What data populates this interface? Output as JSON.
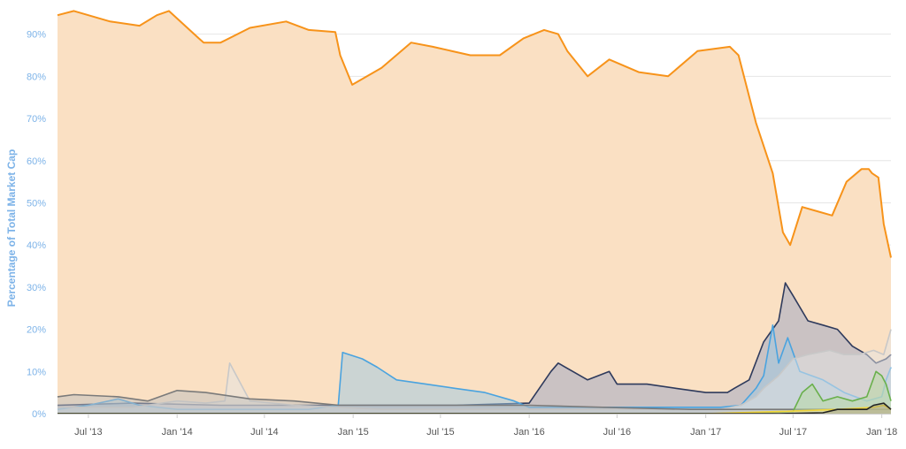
{
  "chart_data": {
    "type": "area",
    "title": "",
    "xlabel": "",
    "ylabel": "Percentage of Total Market Cap",
    "y_unit": "%",
    "ylim": [
      0,
      96
    ],
    "xlim": [
      "2013-04-28",
      "2018-01-20"
    ],
    "grid": true,
    "y_ticks": [
      {
        "value": 0,
        "label": "0%"
      },
      {
        "value": 10,
        "label": "10%"
      },
      {
        "value": 20,
        "label": "20%"
      },
      {
        "value": 30,
        "label": "30%"
      },
      {
        "value": 40,
        "label": "40%"
      },
      {
        "value": 50,
        "label": "50%"
      },
      {
        "value": 60,
        "label": "60%"
      },
      {
        "value": 70,
        "label": "70%"
      },
      {
        "value": 80,
        "label": "80%"
      },
      {
        "value": 90,
        "label": "90%"
      }
    ],
    "x_ticks": [
      {
        "date": "2013-07-01",
        "label": "Jul '13"
      },
      {
        "date": "2014-01-01",
        "label": "Jan '14"
      },
      {
        "date": "2014-07-01",
        "label": "Jul '14"
      },
      {
        "date": "2015-01-01",
        "label": "Jan '15"
      },
      {
        "date": "2015-07-01",
        "label": "Jul '15"
      },
      {
        "date": "2016-01-01",
        "label": "Jan '16"
      },
      {
        "date": "2016-07-01",
        "label": "Jul '16"
      },
      {
        "date": "2017-01-01",
        "label": "Jan '17"
      },
      {
        "date": "2017-07-01",
        "label": "Jul '17"
      },
      {
        "date": "2018-01-01",
        "label": "Jan '18"
      }
    ],
    "series": [
      {
        "color": "#f7931a",
        "fill": "#fae0c3",
        "fill_opacity": 1,
        "x": [
          "2013-04-28",
          "2013-06-01",
          "2013-08-15",
          "2013-10-15",
          "2013-11-20",
          "2013-12-15",
          "2014-02-15",
          "2014-02-25",
          "2014-04-01",
          "2014-06-01",
          "2014-08-15",
          "2014-10-01",
          "2014-11-25",
          "2014-12-05",
          "2014-12-30",
          "2015-03-01",
          "2015-05-01",
          "2015-06-15",
          "2015-09-01",
          "2015-11-01",
          "2015-12-20",
          "2016-02-01",
          "2016-03-01",
          "2016-03-20",
          "2016-05-01",
          "2016-06-15",
          "2016-08-15",
          "2016-10-15",
          "2016-12-15",
          "2017-02-20",
          "2017-03-01",
          "2017-03-10",
          "2017-04-15",
          "2017-05-20",
          "2017-06-10",
          "2017-06-25",
          "2017-07-20",
          "2017-08-20",
          "2017-09-20",
          "2017-10-20",
          "2017-11-20",
          "2017-12-05",
          "2017-12-12",
          "2017-12-25",
          "2018-01-05",
          "2018-01-20"
        ],
        "y": [
          94.5,
          95.5,
          93,
          92,
          94.5,
          95.5,
          89,
          88,
          88,
          91.5,
          93,
          91,
          90.5,
          85,
          78,
          82,
          88,
          87,
          85,
          85,
          89,
          91,
          90,
          86,
          80,
          84,
          81,
          80,
          86,
          87,
          86,
          85,
          69,
          57,
          43,
          40,
          49,
          48,
          47,
          55,
          58,
          58,
          57,
          56,
          45,
          37
        ]
      },
      {
        "color": "#2e3a5c",
        "fill": "#9aa4c4",
        "fill_opacity": 0.5,
        "x": [
          "2013-04-28",
          "2013-10-01",
          "2014-04-01",
          "2014-10-01",
          "2015-03-01",
          "2015-08-01",
          "2016-01-01",
          "2016-02-15",
          "2016-03-01",
          "2016-05-01",
          "2016-06-15",
          "2016-07-01",
          "2016-09-01",
          "2016-11-01",
          "2017-01-01",
          "2017-02-15",
          "2017-03-01",
          "2017-04-01",
          "2017-05-01",
          "2017-06-01",
          "2017-06-15",
          "2017-07-01",
          "2017-08-01",
          "2017-09-01",
          "2017-10-01",
          "2017-11-01",
          "2017-12-01",
          "2017-12-20",
          "2018-01-10",
          "2018-01-20"
        ],
        "y": [
          2,
          2.5,
          2,
          2,
          2,
          2,
          2.5,
          10,
          12,
          8,
          10,
          7,
          7,
          6,
          5,
          5,
          6,
          8,
          17,
          22,
          31,
          28,
          22,
          21,
          20,
          16,
          14,
          12,
          13,
          14
        ]
      },
      {
        "color": "#4aa3df",
        "fill": "#9bc7e3",
        "fill_opacity": 0.5,
        "x": [
          "2013-04-28",
          "2013-07-01",
          "2013-09-01",
          "2013-10-15",
          "2014-01-01",
          "2014-06-01",
          "2014-10-01",
          "2014-12-01",
          "2014-12-10",
          "2015-01-20",
          "2015-02-20",
          "2015-04-01",
          "2015-06-01",
          "2015-08-01",
          "2015-10-01",
          "2015-12-01",
          "2016-01-01",
          "2016-06-01",
          "2016-12-01",
          "2017-02-01",
          "2017-03-15",
          "2017-04-15",
          "2017-05-01",
          "2017-05-20",
          "2017-06-01",
          "2017-06-20",
          "2017-07-15",
          "2017-09-01",
          "2017-10-15",
          "2017-12-01",
          "2018-01-01",
          "2018-01-10",
          "2018-01-20"
        ],
        "y": [
          1,
          2,
          3.5,
          2,
          1,
          1,
          1,
          2,
          14.5,
          13,
          11,
          8,
          7,
          6,
          5,
          3,
          1.5,
          1.5,
          1.5,
          1.5,
          2,
          6,
          9,
          21,
          12,
          18,
          10,
          8,
          5,
          3,
          4,
          8,
          11
        ]
      },
      {
        "color": "#c8c8c8",
        "fill": "#e4e4e4",
        "fill_opacity": 0.5,
        "x": [
          "2013-04-28",
          "2013-10-01",
          "2014-01-01",
          "2014-03-01",
          "2014-04-10",
          "2014-04-20",
          "2014-06-01",
          "2014-09-01",
          "2014-12-01",
          "2015-03-01",
          "2015-09-01",
          "2016-01-01",
          "2016-06-01",
          "2016-12-01",
          "2017-02-01",
          "2017-03-15",
          "2017-04-15",
          "2017-05-01",
          "2017-06-01",
          "2017-07-01",
          "2017-08-01",
          "2017-09-15",
          "2017-10-15",
          "2017-11-15",
          "2017-12-15",
          "2018-01-05",
          "2018-01-20"
        ],
        "y": [
          1.5,
          1.5,
          3,
          2.5,
          3,
          12,
          3,
          2,
          1.5,
          1,
          1,
          1,
          1,
          1,
          1,
          2,
          4,
          6,
          9,
          13,
          14,
          15,
          14,
          14,
          15,
          14,
          20
        ]
      },
      {
        "color": "#7a7a7a",
        "fill": "#bdbdbd",
        "fill_opacity": 0.5,
        "x": [
          "2013-04-28",
          "2013-06-01",
          "2013-09-01",
          "2013-11-01",
          "2014-01-01",
          "2014-03-01",
          "2014-06-01",
          "2014-09-01",
          "2014-12-01",
          "2015-03-01",
          "2015-09-01",
          "2016-01-01",
          "2016-06-01",
          "2016-12-01",
          "2017-03-01",
          "2017-06-01",
          "2017-09-01",
          "2017-12-01",
          "2018-01-20"
        ],
        "y": [
          4,
          4.5,
          4,
          3,
          5.5,
          5,
          3.5,
          3,
          2,
          2,
          2,
          2,
          1.5,
          1,
          1,
          1,
          1,
          1,
          1
        ]
      },
      {
        "color": "#6ab04c",
        "fill": "#b8d9a0",
        "fill_opacity": 0.5,
        "x": [
          "2013-04-28",
          "2017-04-01",
          "2017-07-01",
          "2017-07-20",
          "2017-08-10",
          "2017-09-01",
          "2017-10-01",
          "2017-11-01",
          "2017-12-01",
          "2017-12-20",
          "2018-01-01",
          "2018-01-10",
          "2018-01-20"
        ],
        "y": [
          0,
          0,
          0.5,
          5,
          7,
          3,
          4,
          3,
          4,
          10,
          9,
          7,
          3
        ]
      },
      {
        "color": "#f0d43a",
        "fill": "#f5e79a",
        "fill_opacity": 0.5,
        "x": [
          "2013-04-28",
          "2017-01-01",
          "2017-06-01",
          "2017-10-01",
          "2017-12-15",
          "2018-01-05",
          "2018-01-20"
        ],
        "y": [
          0,
          0,
          0.5,
          1,
          1.5,
          2,
          1
        ]
      },
      {
        "color": "#222222",
        "fill": "#777777",
        "fill_opacity": 0.3,
        "x": [
          "2013-04-28",
          "2017-06-01",
          "2017-09-01",
          "2017-10-01",
          "2017-12-01",
          "2017-12-15",
          "2018-01-05",
          "2018-01-20"
        ],
        "y": [
          0,
          0,
          0.2,
          1,
          1,
          2,
          2.5,
          1
        ]
      }
    ]
  }
}
